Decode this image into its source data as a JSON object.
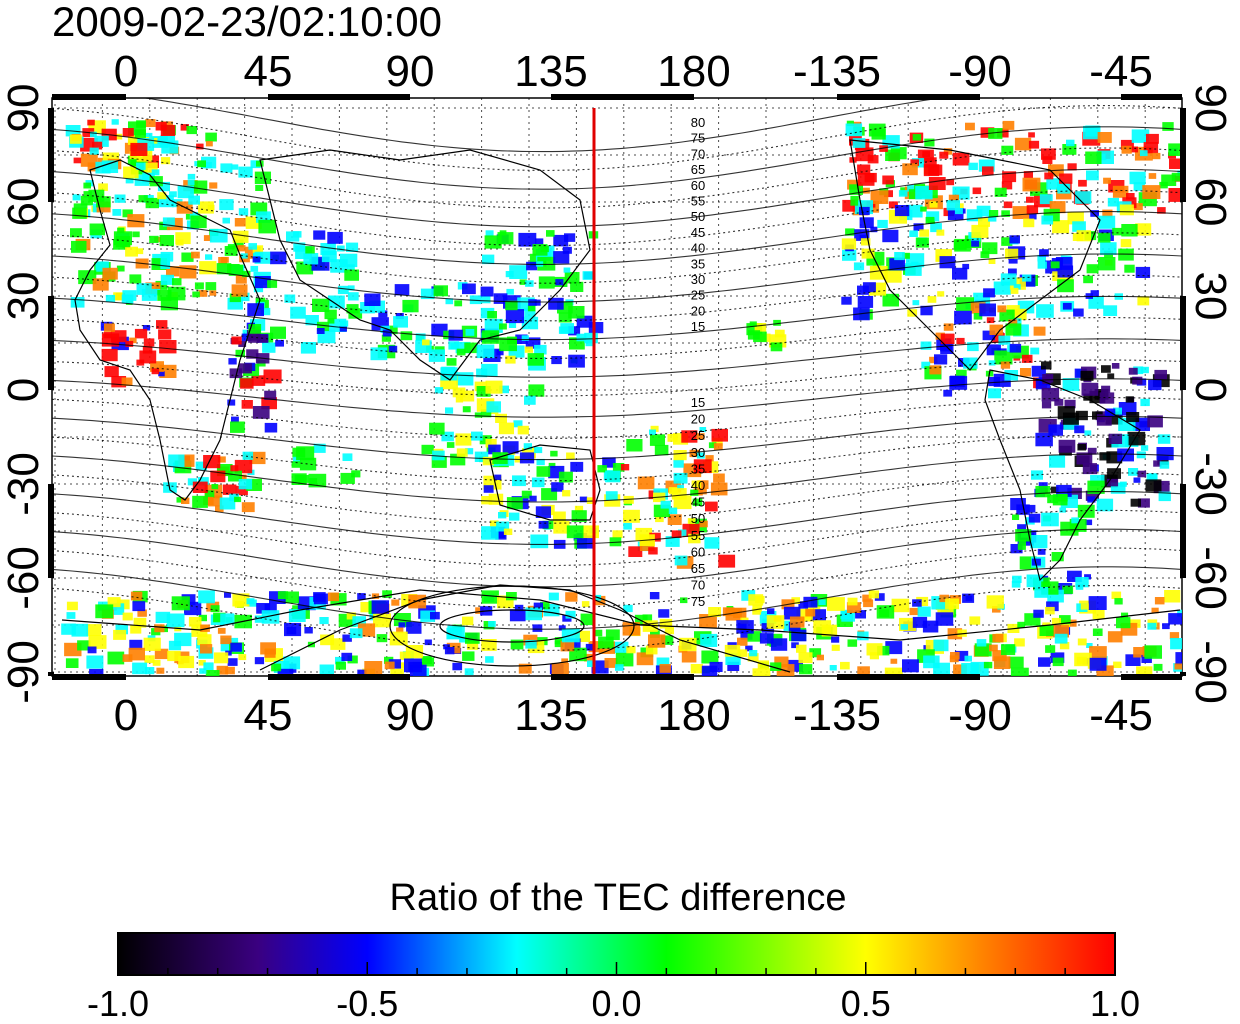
{
  "title": "2009-02-23/02:10:00",
  "map": {
    "top_lon_ticks": [
      "0",
      "45",
      "90",
      "135",
      "180",
      "-135",
      "-90",
      "-45"
    ],
    "bottom_lon_ticks": [
      "0",
      "45",
      "90",
      "135",
      "180",
      "-135",
      "-90",
      "-45"
    ],
    "left_lat_ticks": [
      "90",
      "60",
      "30",
      "0",
      "-30",
      "-60",
      "-90"
    ],
    "right_lat_ticks": [
      "90",
      "60",
      "30",
      "0",
      "-30",
      "-60",
      "-90"
    ],
    "contour_labels_north": [
      "80",
      "75",
      "70",
      "65",
      "60",
      "55",
      "50",
      "45",
      "40",
      "35",
      "30",
      "25",
      "20",
      "15"
    ],
    "contour_labels_south": [
      "15",
      "20",
      "25",
      "30",
      "35",
      "40",
      "45",
      "50",
      "55",
      "60",
      "65",
      "70",
      "75"
    ],
    "marker_color": "#e00000"
  },
  "colorbar": {
    "title": "Ratio of the TEC difference",
    "ticks": [
      "-1.0",
      "-0.5",
      "0.0",
      "0.5",
      "1.0"
    ],
    "colormap": [
      "#000000",
      "#3a0080",
      "#0000ff",
      "#00ffff",
      "#00ff00",
      "#ffff00",
      "#ff8000",
      "#ff0000"
    ]
  }
}
